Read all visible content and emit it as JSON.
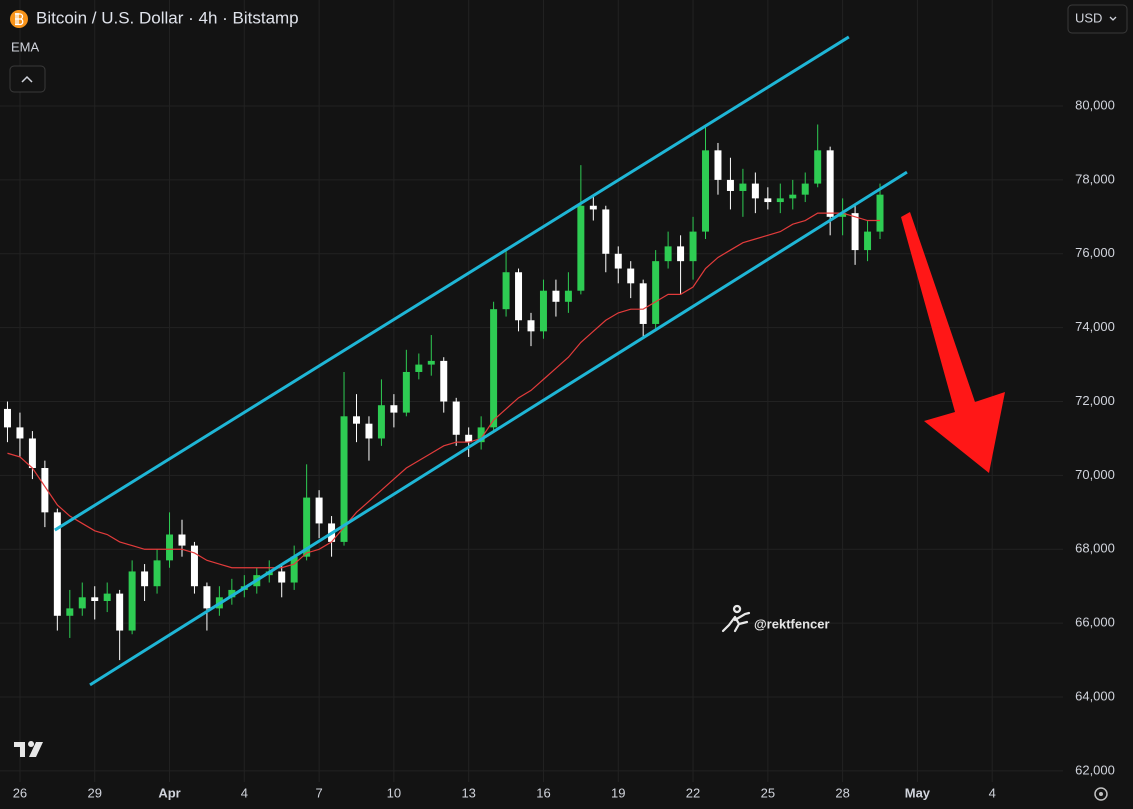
{
  "chart_data": {
    "type": "candlestick",
    "title": "Bitcoin / U.S. Dollar · 4h · Bitstamp",
    "currency": "USD",
    "watermark": "@rektfencer",
    "up_color": "#2ecc53",
    "down_color": "#ffffff",
    "xlim": [
      -0.8,
      41.84
    ],
    "ylim": [
      61700,
      82870
    ],
    "xticks": [
      {
        "value": 0,
        "label": "26"
      },
      {
        "value": 3,
        "label": "29"
      },
      {
        "value": 6,
        "label": "Apr"
      },
      {
        "value": 9,
        "label": "4"
      },
      {
        "value": 12,
        "label": "7"
      },
      {
        "value": 15,
        "label": "10"
      },
      {
        "value": 18,
        "label": "13"
      },
      {
        "value": 21,
        "label": "16"
      },
      {
        "value": 24,
        "label": "19"
      },
      {
        "value": 27,
        "label": "22"
      },
      {
        "value": 30,
        "label": "25"
      },
      {
        "value": 33,
        "label": "28"
      },
      {
        "value": 36,
        "label": "May"
      },
      {
        "value": 39,
        "label": "4"
      }
    ],
    "yticks": [
      {
        "value": 62000,
        "label": "62,000"
      },
      {
        "value": 64000,
        "label": "64,000"
      },
      {
        "value": 66000,
        "label": "66,000"
      },
      {
        "value": 68000,
        "label": "68,000"
      },
      {
        "value": 70000,
        "label": "70,000"
      },
      {
        "value": 72000,
        "label": "72,000"
      },
      {
        "value": 74000,
        "label": "74,000"
      },
      {
        "value": 76000,
        "label": "76,000"
      },
      {
        "value": 78000,
        "label": "78,000"
      },
      {
        "value": 80000,
        "label": "80,000"
      }
    ],
    "grid": true,
    "x": [
      -0.5,
      0,
      0.5,
      1,
      1.5,
      2,
      2.5,
      3,
      3.5,
      4,
      4.5,
      5,
      5.5,
      6,
      6.5,
      7,
      7.5,
      8,
      8.5,
      9,
      9.5,
      10,
      10.5,
      11,
      11.5,
      12,
      12.5,
      13,
      13.5,
      14,
      14.5,
      15,
      15.5,
      16,
      16.5,
      17,
      17.5,
      18,
      18.5,
      19,
      19.5,
      20,
      20.5,
      21,
      21.5,
      22,
      22.5,
      23,
      23.5,
      24,
      24.5,
      25,
      25.5,
      26,
      26.5,
      27,
      27.5,
      28,
      28.5,
      29,
      29.5,
      30,
      30.5,
      31,
      31.5,
      32,
      32.5,
      33,
      33.5,
      34,
      34.5
    ],
    "open": [
      71800,
      71300,
      71000,
      70200,
      69000,
      66200,
      66400,
      66700,
      66600,
      66800,
      65800,
      67400,
      67000,
      67700,
      68400,
      68100,
      67000,
      66400,
      66700,
      66900,
      67000,
      67300,
      67400,
      67100,
      67800,
      69400,
      68700,
      68200,
      71600,
      71400,
      71000,
      71900,
      71700,
      72800,
      73000,
      73100,
      72000,
      71100,
      70900,
      71300,
      74500,
      75500,
      74200,
      73900,
      75000,
      74700,
      75000,
      77300,
      77200,
      76000,
      75600,
      75200,
      74100,
      75800,
      76200,
      75800,
      76600,
      78800,
      78000,
      77700,
      77900,
      77500,
      77400,
      77500,
      77600,
      77900,
      78800,
      77000,
      77100,
      76100,
      76600
    ],
    "high": [
      72000,
      71700,
      71200,
      70400,
      69100,
      66900,
      67100,
      67000,
      67100,
      66900,
      67700,
      67600,
      68000,
      69000,
      68800,
      68200,
      67100,
      67000,
      67200,
      67300,
      67500,
      67700,
      67600,
      68100,
      70300,
      69600,
      68900,
      72800,
      72200,
      71600,
      72600,
      72200,
      73400,
      73300,
      73800,
      73200,
      72100,
      71300,
      71600,
      74700,
      76100,
      75600,
      74400,
      75300,
      75300,
      75500,
      78400,
      77600,
      77300,
      76200,
      75800,
      75300,
      76100,
      76600,
      76500,
      77000,
      79500,
      79000,
      78600,
      78300,
      78200,
      77800,
      77900,
      78000,
      78200,
      79500,
      78900,
      77500,
      77300,
      76900,
      77900
    ],
    "low": [
      70900,
      70500,
      69900,
      68600,
      65800,
      65600,
      66200,
      66100,
      66300,
      65000,
      65700,
      66600,
      66800,
      67500,
      67800,
      66800,
      65800,
      66200,
      66500,
      66700,
      66800,
      67100,
      66700,
      66900,
      67700,
      68300,
      67800,
      68100,
      70900,
      70400,
      70800,
      71300,
      71600,
      72600,
      72700,
      71700,
      70800,
      70500,
      70700,
      71200,
      74300,
      73900,
      73500,
      73700,
      74300,
      74400,
      74900,
      76900,
      75500,
      75200,
      74800,
      73700,
      73900,
      75600,
      74900,
      75300,
      76400,
      77600,
      77200,
      77000,
      77100,
      77200,
      77100,
      77200,
      77400,
      77800,
      76500,
      76500,
      75700,
      75800,
      76400
    ],
    "close": [
      71300,
      71000,
      70200,
      69000,
      66200,
      66400,
      66700,
      66600,
      66800,
      65800,
      67400,
      67000,
      67700,
      68400,
      68100,
      67000,
      66400,
      66700,
      66900,
      67000,
      67300,
      67400,
      67100,
      67800,
      69400,
      68700,
      68200,
      71600,
      71400,
      71000,
      71900,
      71700,
      72800,
      73000,
      73100,
      72000,
      71100,
      70900,
      71300,
      74500,
      75500,
      74200,
      73900,
      75000,
      74700,
      75000,
      77300,
      77200,
      76000,
      75600,
      75200,
      74100,
      75800,
      76200,
      75800,
      76600,
      78800,
      78000,
      77700,
      77900,
      77500,
      77400,
      77500,
      77600,
      77900,
      78800,
      77000,
      77100,
      76100,
      76600,
      77600
    ],
    "ema": {
      "name": "EMA",
      "color": "#e23b3b",
      "values": [
        70600,
        70500,
        70200,
        69700,
        69200,
        68900,
        68700,
        68500,
        68400,
        68200,
        68100,
        68000,
        68000,
        68000,
        68000,
        67900,
        67700,
        67600,
        67500,
        67500,
        67500,
        67500,
        67500,
        67600,
        67900,
        68000,
        68200,
        68600,
        69000,
        69300,
        69600,
        69900,
        70200,
        70400,
        70600,
        70800,
        70900,
        70900,
        71000,
        71500,
        71800,
        72100,
        72300,
        72600,
        72900,
        73200,
        73600,
        73900,
        74200,
        74400,
        74500,
        74500,
        74700,
        74900,
        74900,
        75100,
        75600,
        75900,
        76100,
        76300,
        76400,
        76500,
        76600,
        76800,
        76900,
        77100,
        77100,
        77100,
        77000,
        76900,
        76900
      ]
    },
    "trend_lines": [
      {
        "color": "#1fb6d6",
        "x": [
          1.4,
          33.25
        ],
        "y": [
          68520,
          81870
        ]
      },
      {
        "color": "#1fb6d6",
        "x": [
          2.81,
          35.58
        ],
        "y": [
          64330,
          78210
        ]
      }
    ]
  }
}
